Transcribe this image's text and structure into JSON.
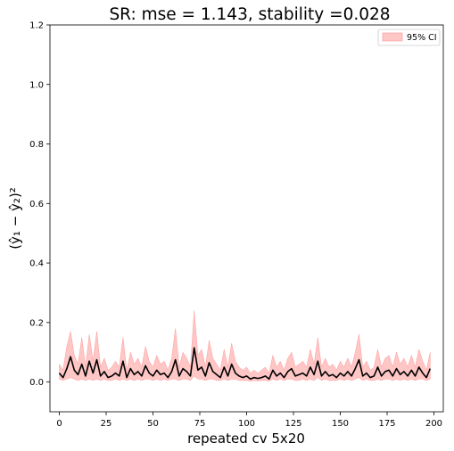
{
  "chart_data": {
    "type": "line",
    "title": "SR: mse = 1.143, stability =0.028",
    "xlabel": "repeated cv 5x20",
    "ylabel": "(ŷ₁ − ŷ₂)²",
    "xlim": [
      -5,
      205
    ],
    "ylim": [
      -0.1,
      1.2
    ],
    "xticks": [
      "0",
      "25",
      "50",
      "75",
      "100",
      "125",
      "150",
      "175",
      "200"
    ],
    "yticks": [
      "0.0",
      "0.2",
      "0.4",
      "0.6",
      "0.8",
      "1.0",
      "1.2"
    ],
    "legend": {
      "position": "upper-right",
      "entries": [
        "95% CI"
      ]
    },
    "grid": false,
    "colors": {
      "mean_line": "#000000",
      "ci_fill": "#ffb3b3",
      "ci_edge": "#ff9999"
    },
    "series": [
      {
        "label": "mean",
        "x": [
          0,
          2,
          4,
          6,
          8,
          10,
          12,
          14,
          16,
          18,
          20,
          22,
          24,
          26,
          28,
          30,
          32,
          34,
          36,
          38,
          40,
          42,
          44,
          46,
          48,
          50,
          52,
          54,
          56,
          58,
          60,
          62,
          64,
          66,
          68,
          70,
          72,
          74,
          76,
          78,
          80,
          82,
          84,
          86,
          88,
          90,
          92,
          94,
          96,
          98,
          100,
          102,
          104,
          106,
          108,
          110,
          112,
          114,
          116,
          118,
          120,
          122,
          124,
          126,
          128,
          130,
          132,
          134,
          136,
          138,
          140,
          142,
          144,
          146,
          148,
          150,
          152,
          154,
          156,
          158,
          160,
          162,
          164,
          166,
          168,
          170,
          172,
          174,
          176,
          178,
          180,
          182,
          184,
          186,
          188,
          190,
          192,
          194,
          196,
          198
        ],
        "y": [
          0.03,
          0.015,
          0.045,
          0.085,
          0.04,
          0.025,
          0.06,
          0.02,
          0.07,
          0.03,
          0.075,
          0.02,
          0.035,
          0.015,
          0.02,
          0.03,
          0.02,
          0.07,
          0.015,
          0.045,
          0.025,
          0.035,
          0.02,
          0.055,
          0.03,
          0.02,
          0.04,
          0.025,
          0.03,
          0.015,
          0.035,
          0.075,
          0.02,
          0.045,
          0.035,
          0.02,
          0.115,
          0.04,
          0.05,
          0.02,
          0.065,
          0.035,
          0.025,
          0.015,
          0.05,
          0.02,
          0.06,
          0.03,
          0.02,
          0.015,
          0.02,
          0.01,
          0.015,
          0.012,
          0.015,
          0.02,
          0.01,
          0.04,
          0.02,
          0.03,
          0.015,
          0.035,
          0.045,
          0.02,
          0.025,
          0.03,
          0.02,
          0.05,
          0.025,
          0.07,
          0.02,
          0.035,
          0.02,
          0.025,
          0.015,
          0.03,
          0.02,
          0.035,
          0.02,
          0.045,
          0.075,
          0.02,
          0.03,
          0.015,
          0.02,
          0.05,
          0.02,
          0.035,
          0.04,
          0.02,
          0.045,
          0.025,
          0.035,
          0.02,
          0.04,
          0.02,
          0.05,
          0.03,
          0.015,
          0.045
        ],
        "ci_low": [
          0.01,
          0.005,
          0.01,
          0.015,
          0.01,
          0.005,
          0.01,
          0.005,
          0.01,
          0.005,
          0.01,
          0.005,
          0.01,
          0.005,
          0.005,
          0.01,
          0.005,
          0.01,
          0.005,
          0.01,
          0.005,
          0.01,
          0.005,
          0.01,
          0.01,
          0.005,
          0.01,
          0.005,
          0.01,
          0.005,
          0.01,
          0.01,
          0.005,
          0.01,
          0.01,
          0.005,
          0.02,
          0.01,
          0.01,
          0.005,
          0.01,
          0.01,
          0.005,
          0.005,
          0.01,
          0.005,
          0.01,
          0.01,
          0.005,
          0.005,
          0.005,
          0.003,
          0.005,
          0.004,
          0.005,
          0.005,
          0.003,
          0.01,
          0.005,
          0.01,
          0.005,
          0.01,
          0.01,
          0.005,
          0.005,
          0.01,
          0.005,
          0.01,
          0.005,
          0.015,
          0.005,
          0.01,
          0.005,
          0.005,
          0.005,
          0.01,
          0.005,
          0.01,
          0.005,
          0.01,
          0.015,
          0.005,
          0.01,
          0.005,
          0.005,
          0.01,
          0.005,
          0.01,
          0.01,
          0.005,
          0.01,
          0.005,
          0.01,
          0.005,
          0.01,
          0.005,
          0.01,
          0.01,
          0.005,
          0.01
        ],
        "ci_high": [
          0.06,
          0.04,
          0.12,
          0.17,
          0.09,
          0.06,
          0.15,
          0.05,
          0.16,
          0.07,
          0.17,
          0.05,
          0.08,
          0.04,
          0.05,
          0.07,
          0.05,
          0.15,
          0.04,
          0.1,
          0.06,
          0.08,
          0.05,
          0.12,
          0.07,
          0.05,
          0.09,
          0.06,
          0.07,
          0.04,
          0.08,
          0.18,
          0.05,
          0.1,
          0.08,
          0.05,
          0.24,
          0.09,
          0.11,
          0.05,
          0.14,
          0.08,
          0.06,
          0.04,
          0.11,
          0.05,
          0.13,
          0.07,
          0.05,
          0.04,
          0.05,
          0.03,
          0.04,
          0.03,
          0.04,
          0.05,
          0.03,
          0.09,
          0.05,
          0.07,
          0.04,
          0.08,
          0.1,
          0.05,
          0.06,
          0.07,
          0.05,
          0.11,
          0.06,
          0.15,
          0.05,
          0.08,
          0.05,
          0.06,
          0.04,
          0.07,
          0.05,
          0.08,
          0.05,
          0.1,
          0.16,
          0.05,
          0.07,
          0.04,
          0.05,
          0.11,
          0.05,
          0.08,
          0.09,
          0.05,
          0.1,
          0.06,
          0.08,
          0.05,
          0.09,
          0.05,
          0.11,
          0.07,
          0.04,
          0.1
        ]
      }
    ]
  }
}
